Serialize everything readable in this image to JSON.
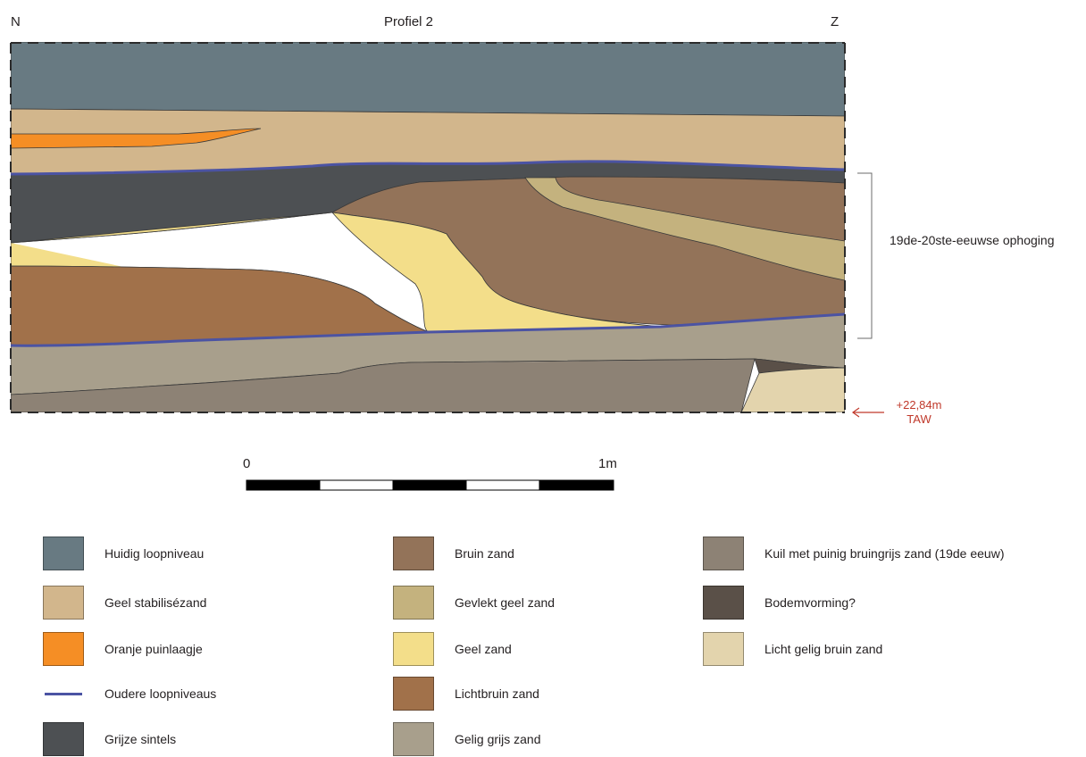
{
  "header": {
    "left_orientation": "N",
    "title": "Profiel 2",
    "right_orientation": "Z"
  },
  "annotation": {
    "bracket_label": "19de-20ste-eeuwse ophoging",
    "elevation_line1": "+22,84m",
    "elevation_line2": "TAW"
  },
  "scale_bar": {
    "start_label": "0",
    "end_label": "1m"
  },
  "colors": {
    "huidig": "#687a82",
    "geel_stab": "#d2b68c",
    "oranje": "#f58e25",
    "oudere_line": "#4b53a3",
    "grijze_sintels": "#4d5053",
    "bruin": "#937359",
    "gevlekt": "#c4b27e",
    "geel": "#f3de8a",
    "lichtbruin": "#a1714a",
    "gelig_grijs": "#a89f8c",
    "kuil": "#8d8275",
    "bodem": "#5a5048",
    "licht_gelig": "#e3d4ad",
    "taw_red": "#c0392b"
  },
  "legend": {
    "col1": [
      {
        "label": "Huidig loopniveau",
        "color": "#687a82"
      },
      {
        "label": "Geel stabilisézand",
        "color": "#d2b68c"
      },
      {
        "label": "Oranje puinlaagje",
        "color": "#f58e25"
      },
      {
        "label": "Oudere loopniveaus",
        "color": "#4b53a3"
      },
      {
        "label": "Grijze sintels",
        "color": "#4d5053"
      }
    ],
    "col2": [
      {
        "label": "Bruin zand",
        "color": "#937359"
      },
      {
        "label": "Gevlekt geel zand",
        "color": "#c4b27e"
      },
      {
        "label": "Geel zand",
        "color": "#f3de8a"
      },
      {
        "label": "Lichtbruin zand",
        "color": "#a1714a"
      },
      {
        "label": "Gelig grijs zand",
        "color": "#a89f8c"
      }
    ],
    "col3": [
      {
        "label": "Kuil met puinig bruingrijs zand (19de eeuw)",
        "color": "#8d8275"
      },
      {
        "label": "Bodemvorming?",
        "color": "#5a5048"
      },
      {
        "label": "Licht gelig bruin zand",
        "color": "#e3d4ad"
      }
    ]
  }
}
